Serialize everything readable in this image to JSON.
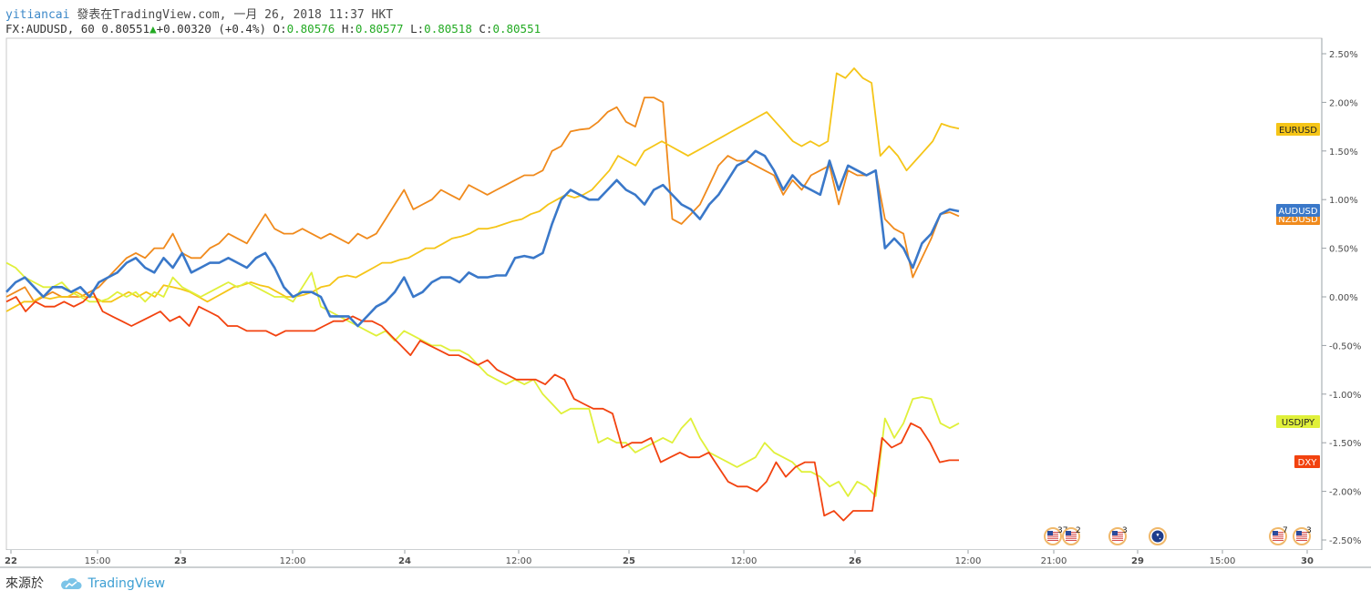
{
  "header": {
    "username": "yitiancai",
    "published_text": "發表在TradingView.com, 一月 26, 2018 11:37 HKT",
    "symbol": "FX:AUDUSD, 60",
    "last": "0.80551",
    "change": "+0.00320 (+0.4%)",
    "o_label": "O:",
    "o_value": "0.80576",
    "h_label": "H:",
    "h_value": "0.80577",
    "l_label": "L:",
    "l_value": "0.80518",
    "c_label": "C:",
    "c_value": "0.80551"
  },
  "footer": {
    "source_label": "來源於",
    "brand": "TradingView"
  },
  "event_markers": [
    {
      "type": "us-flag",
      "count": "37"
    },
    {
      "type": "us-flag",
      "count": "2"
    },
    {
      "type": "us-flag",
      "count": "3"
    },
    {
      "type": "au-flag",
      "count": ""
    },
    {
      "type": "us-flag",
      "count": "7"
    },
    {
      "type": "us-flag",
      "count": "3"
    }
  ],
  "chart_data": {
    "type": "line",
    "y_unit": "%",
    "ylim": [
      -2.6,
      2.6
    ],
    "y_ticks": [
      "2.50%",
      "2.00%",
      "1.50%",
      "1.00%",
      "0.50%",
      "0.00%",
      "-0.50%",
      "-1.00%",
      "-1.50%",
      "-2.00%",
      "-2.50%"
    ],
    "x_ticks": [
      "22",
      "15:00",
      "23",
      "12:00",
      "24",
      "12:00",
      "25",
      "12:00",
      "26",
      "12:00",
      "21:00",
      "29",
      "15:00",
      "30"
    ],
    "grid": false,
    "legend_placement": "right-axis-labels",
    "colors": {
      "EURUSD": "#f5c518",
      "AUDUSD": "#3a78c9",
      "NZDUSD": "#f08a1c",
      "USDJPY": "#e0f03a",
      "DXY": "#f2420f"
    },
    "series": [
      {
        "name": "EURUSD",
        "values": [
          -0.15,
          -0.1,
          -0.05,
          -0.05,
          0.0,
          -0.02,
          0.0,
          0.0,
          0.05,
          0.0,
          0.0,
          -0.05,
          -0.05,
          0.0,
          0.05,
          0.0,
          0.05,
          0.0,
          0.12,
          0.1,
          0.08,
          0.05,
          0.0,
          -0.05,
          0.0,
          0.05,
          0.1,
          0.12,
          0.15,
          0.12,
          0.1,
          0.05,
          0.0,
          0.0,
          0.02,
          0.05,
          0.1,
          0.12,
          0.2,
          0.22,
          0.2,
          0.25,
          0.3,
          0.35,
          0.35,
          0.38,
          0.4,
          0.45,
          0.5,
          0.5,
          0.55,
          0.6,
          0.62,
          0.65,
          0.7,
          0.7,
          0.72,
          0.75,
          0.78,
          0.8,
          0.85,
          0.88,
          0.95,
          1.0,
          1.05,
          1.02,
          1.05,
          1.1,
          1.2,
          1.3,
          1.45,
          1.4,
          1.35,
          1.5,
          1.55,
          1.6,
          1.55,
          1.5,
          1.45,
          1.5,
          1.55,
          1.6,
          1.65,
          1.7,
          1.75,
          1.8,
          1.85,
          1.9,
          1.8,
          1.7,
          1.6,
          1.55,
          1.6,
          1.55,
          1.6,
          2.3,
          2.25,
          2.35,
          2.25,
          2.2,
          1.45,
          1.55,
          1.45,
          1.3,
          1.4,
          1.5,
          1.6,
          1.78,
          1.75,
          1.73
        ]
      },
      {
        "name": "AUDUSD",
        "values": [
          0.05,
          0.15,
          0.2,
          0.1,
          0.0,
          0.1,
          0.1,
          0.05,
          0.1,
          0.0,
          0.15,
          0.2,
          0.25,
          0.35,
          0.4,
          0.3,
          0.25,
          0.4,
          0.3,
          0.45,
          0.25,
          0.3,
          0.35,
          0.35,
          0.4,
          0.35,
          0.3,
          0.4,
          0.45,
          0.3,
          0.1,
          0.0,
          0.05,
          0.05,
          0.0,
          -0.2,
          -0.2,
          -0.2,
          -0.3,
          -0.2,
          -0.1,
          -0.05,
          0.05,
          0.2,
          0.0,
          0.05,
          0.15,
          0.2,
          0.2,
          0.15,
          0.25,
          0.2,
          0.2,
          0.22,
          0.22,
          0.4,
          0.42,
          0.4,
          0.45,
          0.75,
          1.0,
          1.1,
          1.05,
          1.0,
          1.0,
          1.1,
          1.2,
          1.1,
          1.05,
          0.95,
          1.1,
          1.15,
          1.05,
          0.95,
          0.9,
          0.8,
          0.95,
          1.05,
          1.2,
          1.35,
          1.4,
          1.5,
          1.45,
          1.3,
          1.1,
          1.25,
          1.15,
          1.1,
          1.05,
          1.4,
          1.1,
          1.35,
          1.3,
          1.25,
          1.3,
          0.5,
          0.6,
          0.5,
          0.3,
          0.55,
          0.65,
          0.85,
          0.9,
          0.88
        ]
      },
      {
        "name": "NZDUSD",
        "values": [
          0.0,
          0.05,
          0.1,
          -0.05,
          0.0,
          0.05,
          0.0,
          0.0,
          0.0,
          0.05,
          0.1,
          0.2,
          0.3,
          0.4,
          0.45,
          0.4,
          0.5,
          0.5,
          0.65,
          0.45,
          0.4,
          0.4,
          0.5,
          0.55,
          0.65,
          0.6,
          0.55,
          0.7,
          0.85,
          0.7,
          0.65,
          0.65,
          0.7,
          0.65,
          0.6,
          0.65,
          0.6,
          0.55,
          0.65,
          0.6,
          0.65,
          0.8,
          0.95,
          1.1,
          0.9,
          0.95,
          1.0,
          1.1,
          1.05,
          1.0,
          1.15,
          1.1,
          1.05,
          1.1,
          1.15,
          1.2,
          1.25,
          1.25,
          1.3,
          1.5,
          1.55,
          1.7,
          1.72,
          1.73,
          1.8,
          1.9,
          1.95,
          1.8,
          1.75,
          2.05,
          2.05,
          2.0,
          0.8,
          0.75,
          0.85,
          0.95,
          1.15,
          1.35,
          1.45,
          1.4,
          1.4,
          1.35,
          1.3,
          1.25,
          1.05,
          1.2,
          1.1,
          1.25,
          1.3,
          1.35,
          0.95,
          1.3,
          1.25,
          1.25,
          1.3,
          0.8,
          0.7,
          0.65,
          0.2,
          0.4,
          0.6,
          0.85,
          0.87,
          0.83
        ]
      },
      {
        "name": "USDJPY",
        "values": [
          0.35,
          0.3,
          0.2,
          0.15,
          0.1,
          0.1,
          0.15,
          0.05,
          0.0,
          -0.05,
          -0.05,
          -0.02,
          0.05,
          0.0,
          0.05,
          -0.05,
          0.05,
          0.0,
          0.2,
          0.1,
          0.05,
          0.0,
          0.05,
          0.1,
          0.15,
          0.1,
          0.15,
          0.1,
          0.05,
          0.0,
          0.0,
          -0.05,
          0.1,
          0.25,
          -0.1,
          -0.15,
          -0.2,
          -0.25,
          -0.3,
          -0.35,
          -0.4,
          -0.35,
          -0.45,
          -0.35,
          -0.4,
          -0.45,
          -0.5,
          -0.5,
          -0.55,
          -0.55,
          -0.6,
          -0.7,
          -0.8,
          -0.85,
          -0.9,
          -0.85,
          -0.9,
          -0.85,
          -1.0,
          -1.1,
          -1.2,
          -1.15,
          -1.15,
          -1.15,
          -1.5,
          -1.45,
          -1.5,
          -1.5,
          -1.6,
          -1.55,
          -1.5,
          -1.45,
          -1.5,
          -1.35,
          -1.25,
          -1.45,
          -1.6,
          -1.65,
          -1.7,
          -1.75,
          -1.7,
          -1.65,
          -1.5,
          -1.6,
          -1.65,
          -1.7,
          -1.8,
          -1.8,
          -1.85,
          -1.95,
          -1.9,
          -2.05,
          -1.9,
          -1.95,
          -2.05,
          -1.25,
          -1.45,
          -1.3,
          -1.05,
          -1.03,
          -1.05,
          -1.3,
          -1.35,
          -1.3
        ]
      },
      {
        "name": "DXY",
        "values": [
          -0.05,
          0.0,
          -0.15,
          -0.05,
          -0.1,
          -0.1,
          -0.05,
          -0.1,
          -0.05,
          0.05,
          -0.15,
          -0.2,
          -0.25,
          -0.3,
          -0.25,
          -0.2,
          -0.15,
          -0.25,
          -0.2,
          -0.3,
          -0.1,
          -0.15,
          -0.2,
          -0.3,
          -0.3,
          -0.35,
          -0.35,
          -0.35,
          -0.4,
          -0.35,
          -0.35,
          -0.35,
          -0.35,
          -0.3,
          -0.25,
          -0.25,
          -0.2,
          -0.25,
          -0.25,
          -0.3,
          -0.4,
          -0.5,
          -0.6,
          -0.45,
          -0.5,
          -0.55,
          -0.6,
          -0.6,
          -0.65,
          -0.7,
          -0.65,
          -0.75,
          -0.8,
          -0.85,
          -0.85,
          -0.85,
          -0.9,
          -0.8,
          -0.85,
          -1.05,
          -1.1,
          -1.15,
          -1.15,
          -1.2,
          -1.55,
          -1.5,
          -1.5,
          -1.45,
          -1.7,
          -1.65,
          -1.6,
          -1.65,
          -1.65,
          -1.6,
          -1.75,
          -1.9,
          -1.95,
          -1.95,
          -2.0,
          -1.9,
          -1.7,
          -1.85,
          -1.75,
          -1.7,
          -1.7,
          -2.25,
          -2.2,
          -2.3,
          -2.2,
          -2.2,
          -2.2,
          -1.45,
          -1.55,
          -1.5,
          -1.3,
          -1.35,
          -1.5,
          -1.7,
          -1.68,
          -1.68
        ]
      }
    ],
    "series_labels": [
      "EURUSD",
      "AUDUSD",
      "NZDUSD",
      "USDJPY",
      "DXY"
    ]
  }
}
